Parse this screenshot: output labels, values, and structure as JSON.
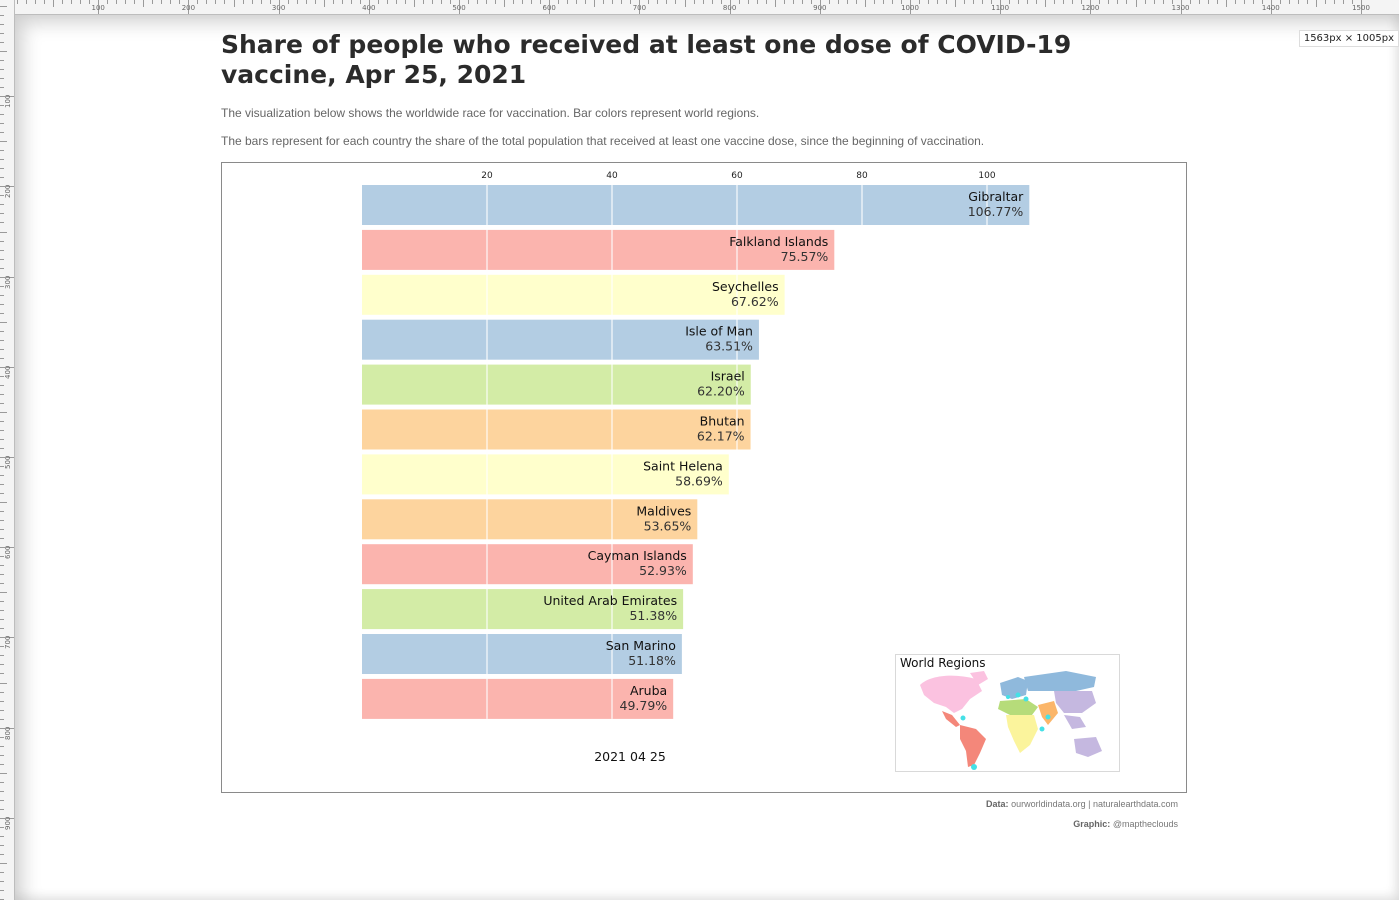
{
  "ruler": {
    "top_labels": [
      "100",
      "200",
      "300",
      "400",
      "500",
      "600",
      "700",
      "800",
      "900",
      "1000",
      "1100",
      "1200",
      "1300",
      "1400",
      "1500"
    ],
    "left_labels": [
      "100",
      "200",
      "300",
      "400",
      "500",
      "600",
      "700",
      "800",
      "900"
    ]
  },
  "badge": "1563px × 1005px",
  "header": {
    "title": "Share of people who received at least one dose of COVID-19 vaccine, Apr 25, 2021",
    "subtitle1": "The visualization below shows the worldwide race for vaccination. Bar colors represent world regions.",
    "subtitle2": "The bars represent for each country the share of the total population that received at least one vaccine dose, since the beginning of vaccination."
  },
  "chart_data": {
    "type": "bar",
    "orientation": "horizontal",
    "categories": [
      "Gibraltar",
      "Falkland Islands",
      "Seychelles",
      "Isle of Man",
      "Israel",
      "Bhutan",
      "Saint Helena",
      "Maldives",
      "Cayman Islands",
      "United Arab Emirates",
      "San Marino",
      "Aruba"
    ],
    "values": [
      106.77,
      75.57,
      67.62,
      63.51,
      62.2,
      62.17,
      58.69,
      53.65,
      52.93,
      51.38,
      51.18,
      49.79
    ],
    "value_labels": [
      "106.77%",
      "75.57%",
      "67.62%",
      "63.51%",
      "62.20%",
      "62.17%",
      "58.69%",
      "53.65%",
      "52.93%",
      "51.38%",
      "51.18%",
      "49.79%"
    ],
    "regions": [
      "Europe",
      "Latin America",
      "Africa",
      "Europe",
      "Middle East",
      "South Asia",
      "Africa",
      "South Asia",
      "Latin America",
      "Middle East",
      "Europe",
      "Latin America"
    ],
    "region_colors": {
      "Europe": "#b3cde3",
      "Latin America": "#fbb4ae",
      "Africa": "#ffffcc",
      "Middle East": "#d3eca6",
      "South Asia": "#fdd49e"
    },
    "x_ticks": [
      20,
      40,
      60,
      80,
      100
    ],
    "xlim": [
      0,
      110
    ],
    "grid": true,
    "date_label": "2021 04 25",
    "legend_title": "World Regions",
    "legend_placement": "bottom-right"
  },
  "credits": {
    "data_label": "Data:",
    "data_value": "ourworldindata.org | naturalearthdata.com",
    "graphic_label": "Graphic:",
    "graphic_value": "@mapthecl​ouds"
  }
}
